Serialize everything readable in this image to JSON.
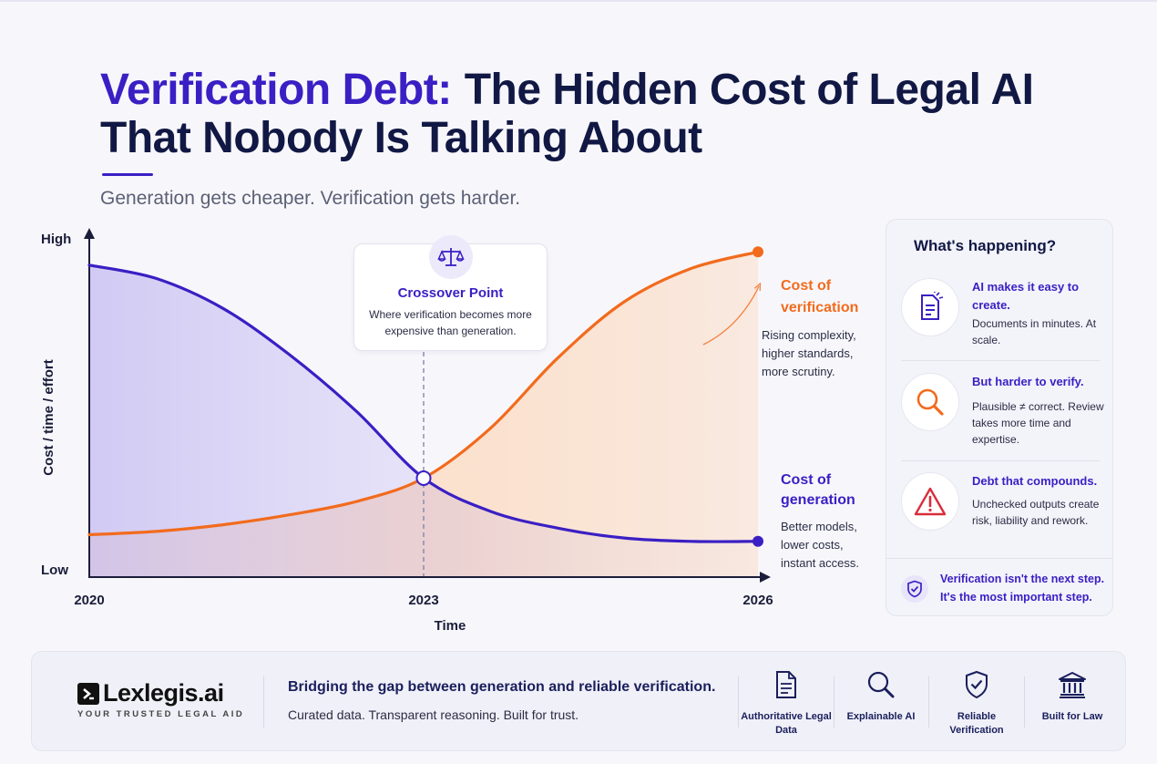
{
  "title": {
    "accent": "Verification Debt:",
    "rest_line1": "The Hidden Cost of Legal AI",
    "line2": "That Nobody Is Talking About"
  },
  "subtitle": "Generation gets cheaper. Verification gets harder.",
  "colors": {
    "generation": "#3a1fc4",
    "verification": "#f26b1d",
    "dark": "#111844"
  },
  "chart_data": {
    "type": "line",
    "title": "",
    "xlabel": "Time",
    "ylabel": "Cost / time / effort",
    "x_ticks": [
      "2020",
      "2023",
      "2026"
    ],
    "y_ticks": [
      "Low",
      "High"
    ],
    "xlim": [
      2020,
      2026
    ],
    "ylim": [
      0,
      1
    ],
    "grid": false,
    "series": [
      {
        "name": "Cost of generation",
        "title_lines": [
          "Cost of",
          "generation"
        ],
        "desc_lines": [
          "Better models,",
          "lower costs,",
          "instant access."
        ],
        "x": [
          2020,
          2020.6,
          2021.2,
          2021.8,
          2022.4,
          2023,
          2023.6,
          2024.2,
          2024.8,
          2025.4,
          2026
        ],
        "y": [
          0.91,
          0.87,
          0.78,
          0.64,
          0.47,
          0.27,
          0.17,
          0.12,
          0.09,
          0.08,
          0.08
        ]
      },
      {
        "name": "Cost of verification",
        "title_lines": [
          "Cost of",
          "verification"
        ],
        "desc_lines": [
          "Rising complexity,",
          "higher standards,",
          "more scrutiny."
        ],
        "x": [
          2020,
          2020.6,
          2021.2,
          2021.8,
          2022.4,
          2023,
          2023.6,
          2024.2,
          2024.8,
          2025.4,
          2026
        ],
        "y": [
          0.1,
          0.11,
          0.13,
          0.16,
          0.2,
          0.27,
          0.42,
          0.63,
          0.8,
          0.9,
          0.95
        ]
      }
    ],
    "annotation": {
      "x": 2023,
      "title": "Crossover Point",
      "desc": "Where verification becomes more expensive than generation."
    }
  },
  "panel": {
    "title": "What's happening?",
    "items": [
      {
        "icon": "document-edit-icon",
        "head": "AI makes it easy to create.",
        "body": "Documents in minutes. At scale."
      },
      {
        "icon": "magnifier-icon",
        "head": "But harder to verify.",
        "body": "Plausible ≠ correct. Review takes more time and expertise."
      },
      {
        "icon": "warning-icon",
        "head": "Debt that compounds.",
        "body": "Unchecked outputs create risk, liability and rework."
      }
    ],
    "footer": "Verification isn't the next step. It's the most important step."
  },
  "footer": {
    "brand": "Lexlegis.ai",
    "tagline": "YOUR TRUSTED LEGAL AID",
    "headline": "Bridging the gap between generation and reliable verification.",
    "subline": "Curated data. Transparent reasoning. Built for trust.",
    "features": [
      {
        "icon": "document-icon",
        "label": "Authoritative Legal Data"
      },
      {
        "icon": "search-icon",
        "label": "Explainable AI"
      },
      {
        "icon": "shield-check-icon",
        "label": "Reliable Verification"
      },
      {
        "icon": "courthouse-icon",
        "label": "Built for Law"
      }
    ]
  }
}
